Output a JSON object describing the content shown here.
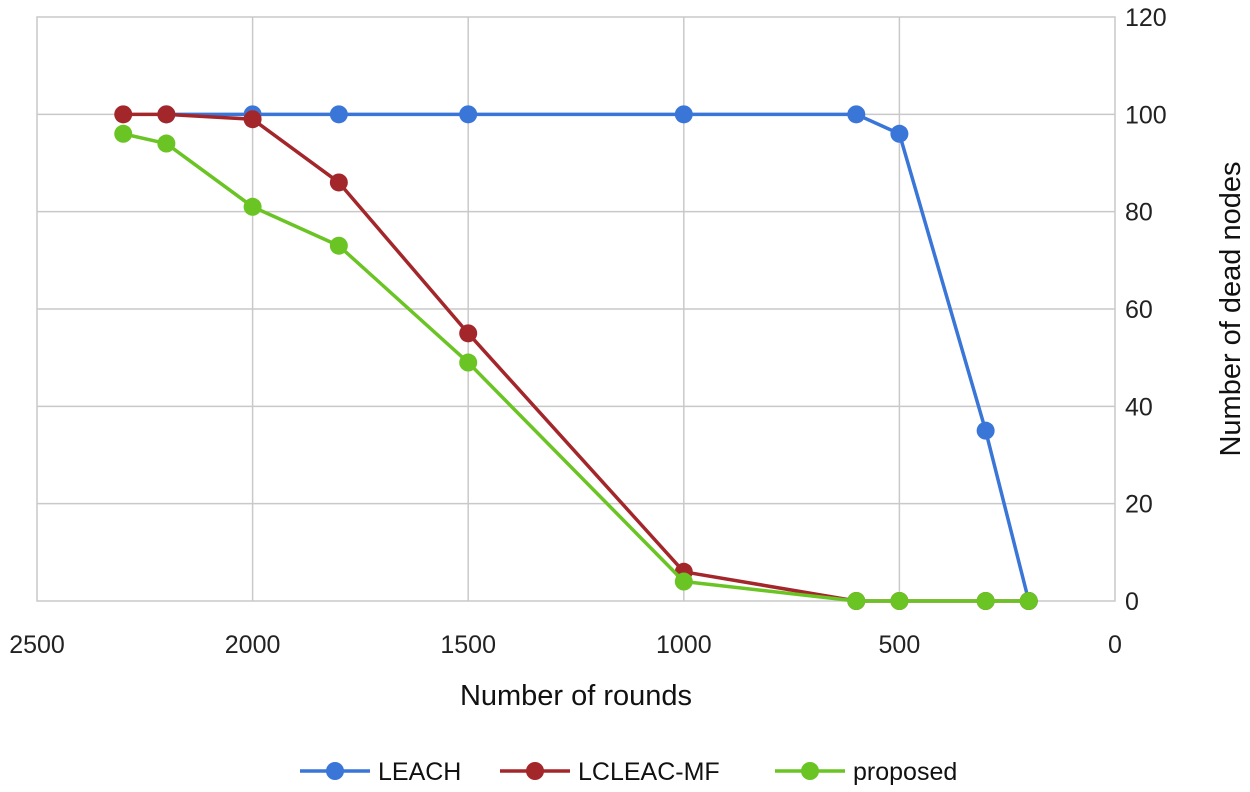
{
  "chart_data": {
    "type": "line",
    "title": "",
    "xlabel": "Number of rounds",
    "ylabel": "Number of dead nodes",
    "xlim": [
      2500,
      0
    ],
    "ylim": [
      0,
      120
    ],
    "x_reversed": true,
    "y_axis_side": "right",
    "grid": true,
    "xticks": [
      2500,
      2000,
      1500,
      1000,
      500,
      0
    ],
    "yticks": [
      0,
      20,
      40,
      60,
      80,
      100,
      120
    ],
    "legend_position": "bottom",
    "series": [
      {
        "name": "LEACH",
        "color": "#3a75d8",
        "x": [
          2200,
          2000,
          1800,
          1500,
          1000,
          600,
          500,
          300,
          200
        ],
        "y": [
          100,
          100,
          100,
          100,
          100,
          100,
          96,
          35,
          0
        ]
      },
      {
        "name": "LCLEAC-MF",
        "color": "#a3262b",
        "x": [
          2300,
          2200,
          2000,
          1800,
          1500,
          1000,
          600,
          500,
          300,
          200
        ],
        "y": [
          100,
          100,
          99,
          86,
          55,
          6,
          0,
          0,
          0,
          0
        ]
      },
      {
        "name": "proposed",
        "color": "#6ac424",
        "x": [
          2300,
          2200,
          2000,
          1800,
          1500,
          1000,
          600,
          500,
          300,
          200
        ],
        "y": [
          96,
          94,
          81,
          73,
          49,
          4,
          0,
          0,
          0,
          0
        ]
      }
    ]
  }
}
